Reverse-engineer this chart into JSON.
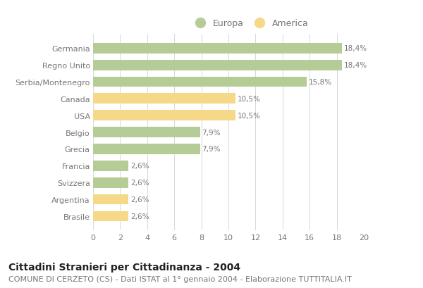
{
  "countries": [
    "Germania",
    "Regno Unito",
    "Serbia/Montenegro",
    "Canada",
    "USA",
    "Belgio",
    "Grecia",
    "Francia",
    "Svizzera",
    "Argentina",
    "Brasile"
  ],
  "values": [
    18.4,
    18.4,
    15.8,
    10.5,
    10.5,
    7.9,
    7.9,
    2.6,
    2.6,
    2.6,
    2.6
  ],
  "labels": [
    "18,4%",
    "18,4%",
    "15,8%",
    "10,5%",
    "10,5%",
    "7,9%",
    "7,9%",
    "2,6%",
    "2,6%",
    "2,6%",
    "2,6%"
  ],
  "categories": [
    "Europa",
    "Europa",
    "Europa",
    "America",
    "America",
    "Europa",
    "Europa",
    "Europa",
    "Europa",
    "America",
    "America"
  ],
  "color_europa": "#b5cc96",
  "color_america": "#f5d888",
  "background_color": "#ffffff",
  "grid_color": "#d8d8d8",
  "title": "Cittadini Stranieri per Cittadinanza - 2004",
  "subtitle": "COMUNE DI CERZETO (CS) - Dati ISTAT al 1° gennaio 2004 - Elaborazione TUTTITALIA.IT",
  "legend_europa": "Europa",
  "legend_america": "America",
  "xlim": [
    0,
    20
  ],
  "xticks": [
    0,
    2,
    4,
    6,
    8,
    10,
    12,
    14,
    16,
    18,
    20
  ],
  "title_fontsize": 10,
  "subtitle_fontsize": 8,
  "label_fontsize": 7.5,
  "tick_fontsize": 8,
  "legend_fontsize": 9,
  "text_color": "#777777",
  "title_color": "#222222"
}
